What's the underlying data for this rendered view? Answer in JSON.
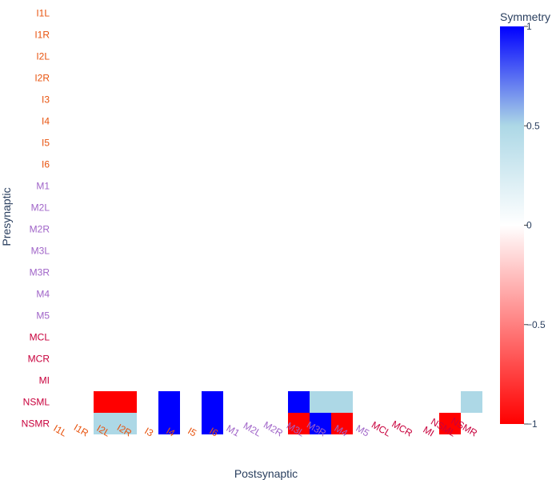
{
  "chart_data": {
    "type": "heatmap",
    "xlabel": "Postsynaptic",
    "ylabel": "Presynaptic",
    "colorbar_title": "Symmetry",
    "colorbar_ticks": [
      "1",
      "0.5",
      "0",
      "−0.5",
      "−1"
    ],
    "colorbar_tick_values": [
      1,
      0.5,
      0,
      -0.5,
      -1
    ],
    "zmin": -1,
    "zmax": 1,
    "colorscale": [
      {
        "value": -1,
        "color": "#ff0000"
      },
      {
        "value": 0,
        "color": "#ffffff"
      },
      {
        "value": 0.5,
        "color": "#add8e6"
      },
      {
        "value": 1,
        "color": "#0000ff"
      }
    ],
    "x_categories": [
      "I1L",
      "I1R",
      "I2L",
      "I2R",
      "I3",
      "I4",
      "I5",
      "I6",
      "M1",
      "M2L",
      "M2R",
      "M3L",
      "M3R",
      "M4",
      "M5",
      "MCL",
      "MCR",
      "MI",
      "NSML",
      "NSMR"
    ],
    "y_categories": [
      "I1L",
      "I1R",
      "I2L",
      "I2R",
      "I3",
      "I4",
      "I5",
      "I6",
      "M1",
      "M2L",
      "M2R",
      "M3L",
      "M3R",
      "M4",
      "M5",
      "MCL",
      "MCR",
      "MI",
      "NSML",
      "NSMR"
    ],
    "label_colors": {
      "I1L": "#e8530e",
      "I1R": "#e8530e",
      "I2L": "#e8530e",
      "I2R": "#e8530e",
      "I3": "#e8530e",
      "I4": "#e8530e",
      "I5": "#e8530e",
      "I6": "#e8530e",
      "M1": "#a064c8",
      "M2L": "#a064c8",
      "M2R": "#a064c8",
      "M3L": "#a064c8",
      "M3R": "#a064c8",
      "M4": "#a064c8",
      "M5": "#a064c8",
      "MCL": "#c8003c",
      "MCR": "#c8003c",
      "MI": "#c8003c",
      "NSML": "#c8003c",
      "NSMR": "#c8003c"
    },
    "cells": [
      {
        "pre": "NSML",
        "post": "I2L",
        "value": -1
      },
      {
        "pre": "NSML",
        "post": "I2R",
        "value": -1
      },
      {
        "pre": "NSML",
        "post": "I4",
        "value": 1
      },
      {
        "pre": "NSML",
        "post": "I6",
        "value": 1
      },
      {
        "pre": "NSML",
        "post": "M3L",
        "value": 1
      },
      {
        "pre": "NSML",
        "post": "M3R",
        "value": 0.5
      },
      {
        "pre": "NSML",
        "post": "M4",
        "value": 0.5
      },
      {
        "pre": "NSML",
        "post": "NSMR",
        "value": 0.5
      },
      {
        "pre": "NSMR",
        "post": "I2L",
        "value": 0.5
      },
      {
        "pre": "NSMR",
        "post": "I2R",
        "value": 0.5
      },
      {
        "pre": "NSMR",
        "post": "I4",
        "value": 1
      },
      {
        "pre": "NSMR",
        "post": "I6",
        "value": 1
      },
      {
        "pre": "NSMR",
        "post": "M3L",
        "value": -1
      },
      {
        "pre": "NSMR",
        "post": "M3R",
        "value": 1
      },
      {
        "pre": "NSMR",
        "post": "M4",
        "value": -1
      },
      {
        "pre": "NSMR",
        "post": "NSML",
        "value": -1
      }
    ]
  }
}
